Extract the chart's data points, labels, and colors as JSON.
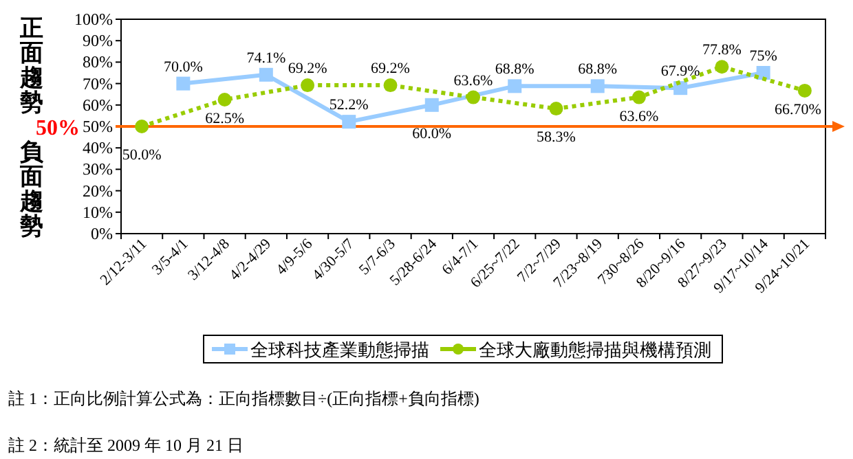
{
  "chart_data": {
    "type": "line",
    "categories": [
      "2/12-3/11",
      "3/5-4/1",
      "3/12-4/8",
      "4/2-4/29",
      "4/9-5/6",
      "4/30-5/7",
      "5/7-6/3",
      "5/28-6/24",
      "6/4-7/1",
      "6/25~7/22",
      "7/2~7/29",
      "7/23~8/19",
      "730~8/26",
      "8/20~9/16",
      "8/27~9/23",
      "9/17~10/14",
      "9/24~10/21"
    ],
    "series": [
      {
        "name": "全球科技產業動態掃描",
        "color": "#99ccff",
        "marker": "square",
        "line_style": "solid",
        "values": [
          null,
          70.0,
          null,
          74.1,
          null,
          52.2,
          null,
          60.0,
          null,
          68.8,
          null,
          68.8,
          null,
          67.9,
          null,
          75,
          null
        ],
        "value_labels": [
          null,
          "70.0%",
          null,
          "74.1%",
          null,
          "52.2%",
          null,
          "60.0%",
          null,
          "68.8%",
          null,
          "68.8%",
          null,
          "67.9%",
          null,
          "75%",
          null
        ]
      },
      {
        "name": "全球大廠動態掃描與機構預測",
        "color": "#99cc00",
        "marker": "circle",
        "line_style": "dotted",
        "values": [
          50.0,
          null,
          62.5,
          null,
          69.2,
          null,
          69.2,
          null,
          63.6,
          null,
          58.3,
          null,
          63.6,
          null,
          77.8,
          null,
          66.7
        ],
        "value_labels": [
          "50.0%",
          null,
          "62.5%",
          null,
          "69.2%",
          null,
          "69.2%",
          null,
          "63.6%",
          null,
          "58.3%",
          null,
          "63.6%",
          null,
          "77.8%",
          null,
          "66.70%"
        ]
      }
    ],
    "ylim": [
      0,
      100
    ],
    "yticks": [
      {
        "value": 0,
        "label": "0%"
      },
      {
        "value": 10,
        "label": "10%"
      },
      {
        "value": 20,
        "label": "20%"
      },
      {
        "value": 30,
        "label": "30%"
      },
      {
        "value": 40,
        "label": "40%"
      },
      {
        "value": 50,
        "label": "50%"
      },
      {
        "value": 60,
        "label": "60%"
      },
      {
        "value": 70,
        "label": "70%"
      },
      {
        "value": 80,
        "label": "80%"
      },
      {
        "value": 90,
        "label": "90%"
      },
      {
        "value": 100,
        "label": "100%"
      }
    ],
    "ref_lines": [
      {
        "axis": "y",
        "value": 50,
        "label": "50%",
        "color": "#ff6600"
      }
    ],
    "grid": false,
    "legend": "bottom",
    "annotations": [
      "正面趨勢",
      "負面趨勢",
      "註 1：正向比例計算公式為：正向指標數目÷(正向指標+負向指標)",
      "註 2：統計至 2009 年 10 月 21 日"
    ]
  }
}
